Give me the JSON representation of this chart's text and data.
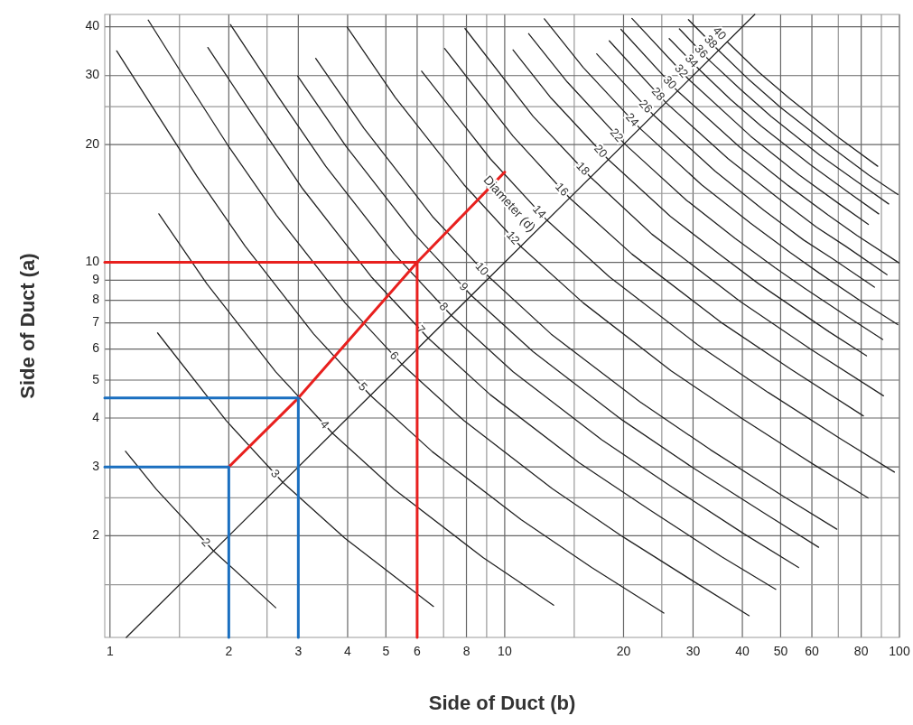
{
  "chart_data": {
    "type": "line",
    "log": "xy",
    "xlabel": "Side of Duct (b)",
    "ylabel": "Side of Duct (a)",
    "xlim": [
      0.97,
      100
    ],
    "ylim": [
      1.1,
      43
    ],
    "xticks": [
      1,
      {
        "value": 1.5,
        "label": null
      },
      2,
      {
        "value": 2.5,
        "label": null
      },
      3,
      4,
      5,
      6,
      {
        "value": 7,
        "label": null
      },
      8,
      {
        "value": 9,
        "label": null
      },
      10,
      {
        "value": 15,
        "label": null
      },
      20,
      {
        "value": 25,
        "label": null
      },
      30,
      40,
      50,
      60,
      {
        "value": 70,
        "label": null
      },
      80,
      {
        "value": 90,
        "label": null
      },
      100
    ],
    "yticks": [
      {
        "value": 1.5,
        "label": null
      },
      2,
      {
        "value": 2.5,
        "label": null
      },
      3,
      4,
      5,
      6,
      7,
      8,
      9,
      10,
      {
        "value": 15,
        "label": null
      },
      20,
      {
        "value": 25,
        "label": null
      },
      30,
      40
    ],
    "grid": true,
    "annotations": [
      {
        "text": "Diameter (d)",
        "x": 12,
        "y": 12
      }
    ],
    "series": [
      {
        "color": "#222222",
        "x": [
          1.1,
          43
        ],
        "values": [
          1.1,
          43
        ]
      },
      {
        "name": "2",
        "color": "#222222",
        "x": [
          1.095,
          1.31,
          1.83,
          2.63
        ],
        "values": [
          3.29,
          2.63,
          1.83,
          1.31
        ]
      },
      {
        "name": "3",
        "color": "#222222",
        "x": [
          1.32,
          1.97,
          2.74,
          3.94,
          6.6
        ],
        "values": [
          6.6,
          3.94,
          2.74,
          1.97,
          1.32
        ]
      },
      {
        "name": "4",
        "color": "#222222",
        "x": [
          1.33,
          1.76,
          2.63,
          3.66,
          5.25,
          8.81,
          13.3
        ],
        "values": [
          13.3,
          8.81,
          5.25,
          3.66,
          2.63,
          1.76,
          1.33
        ]
      },
      {
        "name": "5",
        "color": "#222222",
        "x": [
          1.04,
          1.27,
          1.66,
          2.2,
          3.28,
          4.57,
          6.56,
          11,
          16.6,
          25.3
        ],
        "values": [
          34.7,
          25.3,
          16.6,
          11,
          6.56,
          4.57,
          3.28,
          2.2,
          1.66,
          1.27
        ]
      },
      {
        "name": "6",
        "color": "#222222",
        "x": [
          1.25,
          1.52,
          1.99,
          2.64,
          3.94,
          5.49,
          7.88,
          13.2,
          19.9,
          30.4,
          41.6
        ],
        "values": [
          41.6,
          30.4,
          19.9,
          13.2,
          7.88,
          5.49,
          3.94,
          2.64,
          1.99,
          1.52,
          1.25
        ]
      },
      {
        "name": "7",
        "color": "#222222",
        "x": [
          1.77,
          2.33,
          3.08,
          4.59,
          6.4,
          9.19,
          15.4,
          23.3,
          35.4,
          48.6
        ],
        "values": [
          35.4,
          23.3,
          15.4,
          9.19,
          6.4,
          4.59,
          3.08,
          2.33,
          1.77,
          1.46
        ]
      },
      {
        "name": "8",
        "color": "#222222",
        "x": [
          2.02,
          2.66,
          3.52,
          5.25,
          7.32,
          10.5,
          17.6,
          26.6,
          40.5,
          55.5
        ],
        "values": [
          40.5,
          26.6,
          17.6,
          10.5,
          7.32,
          5.25,
          3.52,
          2.66,
          2.02,
          1.66
        ]
      },
      {
        "name": "9",
        "color": "#222222",
        "x": [
          2.99,
          3.96,
          5.91,
          8.23,
          11.8,
          19.8,
          29.9,
          45.6,
          62.4
        ],
        "values": [
          29.9,
          19.8,
          11.8,
          8.23,
          5.91,
          3.96,
          2.99,
          2.28,
          1.87
        ]
      },
      {
        "name": "10",
        "color": "#222222",
        "x": [
          3.32,
          4.4,
          6.56,
          9.15,
          13.1,
          22,
          33.2,
          50.6,
          69.4
        ],
        "values": [
          33.2,
          22,
          13.1,
          9.15,
          6.56,
          4.4,
          3.32,
          2.53,
          2.08
        ]
      },
      {
        "name": "12",
        "color": "#222222",
        "x": [
          3.99,
          5.28,
          7.88,
          10.98,
          15.8,
          26.4,
          39.9,
          60.7,
          83.3
        ],
        "values": [
          39.9,
          26.4,
          15.8,
          10.98,
          7.88,
          5.28,
          3.99,
          3.04,
          2.5
        ]
      },
      {
        "name": "14",
        "color": "#222222",
        "x": [
          6.16,
          9.19,
          12.8,
          18.4,
          30.8,
          46.5,
          70.9,
          97.1
        ],
        "values": [
          30.8,
          18.4,
          12.8,
          9.19,
          6.16,
          4.65,
          3.54,
          2.91
        ]
      },
      {
        "name": "16",
        "color": "#222222",
        "x": [
          7.04,
          10.5,
          14.6,
          21,
          35.2,
          53.2,
          81
        ],
        "values": [
          35.2,
          21,
          14.6,
          10.5,
          7.04,
          5.32,
          4.05
        ]
      },
      {
        "name": "18",
        "color": "#222222",
        "x": [
          7.93,
          11.8,
          16.5,
          23.6,
          39.6,
          59.8,
          91.1
        ],
        "values": [
          39.6,
          23.6,
          16.5,
          11.8,
          7.93,
          5.98,
          4.56
        ]
      },
      {
        "name": "20",
        "color": "#222222",
        "x": [
          10.5,
          13.1,
          18.3,
          26.3,
          34.9,
          44,
          66.4,
          82.5
        ],
        "values": [
          34.9,
          26.3,
          18.3,
          13.1,
          10.5,
          8.81,
          6.64,
          5.77
        ]
      },
      {
        "name": "22",
        "color": "#222222",
        "x": [
          11.5,
          14.4,
          20.1,
          28.9,
          38.4,
          48.4,
          57.4,
          73.1,
          90.7
        ],
        "values": [
          38.4,
          28.9,
          20.1,
          14.4,
          11.5,
          9.69,
          8.6,
          7.31,
          6.35
        ]
      },
      {
        "name": "24",
        "color": "#222222",
        "x": [
          12.6,
          15.8,
          22,
          31.5,
          41.9,
          52.8,
          62.6,
          79.7,
          99
        ],
        "values": [
          41.9,
          31.5,
          22,
          15.8,
          12.6,
          10.6,
          9.39,
          7.97,
          6.93
        ]
      },
      {
        "name": "26",
        "color": "#222222",
        "x": [
          17.1,
          23.8,
          34.1,
          45.3,
          57.2,
          67.8,
          86.4
        ],
        "values": [
          34.1,
          23.8,
          17.1,
          13.6,
          11.4,
          10.2,
          8.64
        ]
      },
      {
        "name": "28",
        "color": "#222222",
        "x": [
          18.4,
          25.6,
          36.8,
          48.8,
          61.6,
          73,
          93
        ],
        "values": [
          36.8,
          25.6,
          18.4,
          14.7,
          12.3,
          11,
          9.3
        ]
      },
      {
        "name": "30",
        "color": "#222222",
        "x": [
          19.7,
          27.4,
          39.4,
          52.3,
          66,
          78.2,
          99.7
        ],
        "values": [
          39.4,
          27.4,
          19.7,
          15.7,
          13.2,
          11.7,
          9.97
        ]
      },
      {
        "name": "32",
        "color": "#222222",
        "x": [
          21,
          29.3,
          42,
          55.8,
          70.4,
          83.4
        ],
        "values": [
          42,
          29.3,
          21,
          16.7,
          14.1,
          12.5
        ]
      },
      {
        "name": "34",
        "color": "#222222",
        "x": [
          26.1,
          31.1,
          37.3,
          44.6,
          59.3,
          74.9,
          88.6
        ],
        "values": [
          37.3,
          31.1,
          26.1,
          22.3,
          17.8,
          15,
          13.3
        ]
      },
      {
        "name": "36",
        "color": "#222222",
        "x": [
          27.7,
          32.9,
          39.5,
          47.3,
          62.8,
          79.3,
          93.9
        ],
        "values": [
          39.5,
          32.9,
          27.7,
          23.6,
          18.8,
          15.9,
          14.1
        ]
      },
      {
        "name": "38",
        "color": "#222222",
        "x": [
          29.2,
          34.8,
          41.7,
          49.9,
          66.3,
          83.7,
          99.1
        ],
        "values": [
          41.7,
          34.8,
          29.2,
          24.9,
          19.9,
          16.7,
          14.9
        ]
      },
      {
        "name": "40",
        "color": "#222222",
        "x": [
          36.6,
          43.9,
          52.5,
          69.8,
          88.1
        ],
        "values": [
          36.6,
          30.7,
          26.3,
          20.9,
          17.6
        ]
      },
      {
        "color": "#e8201e",
        "x": [
          0.97,
          6
        ],
        "values": [
          10,
          10
        ]
      },
      {
        "color": "#e8201e",
        "x": [
          6,
          6
        ],
        "values": [
          10,
          1.1
        ]
      },
      {
        "color": "#e8201e",
        "x": [
          2,
          3,
          6,
          10
        ],
        "values": [
          3,
          4.5,
          10,
          17
        ]
      },
      {
        "color": "#1a6fc0",
        "x": [
          0.97,
          2,
          2
        ],
        "values": [
          3,
          3,
          1.1
        ]
      },
      {
        "color": "#1a6fc0",
        "x": [
          0.97,
          3,
          3
        ],
        "values": [
          4.5,
          4.5,
          1.1
        ]
      }
    ]
  }
}
